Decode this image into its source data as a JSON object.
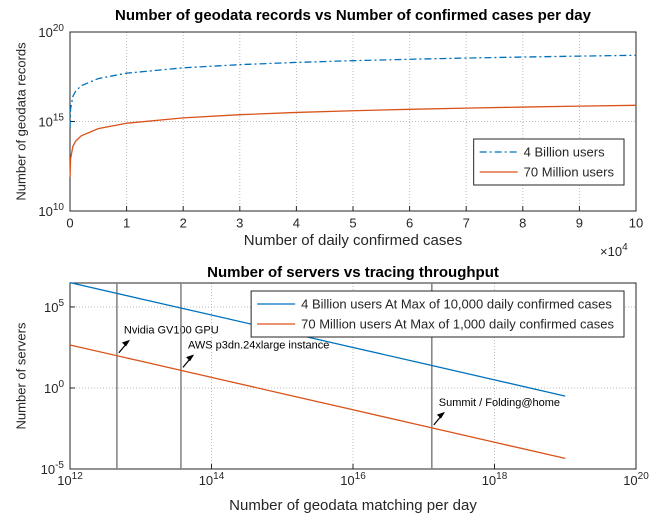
{
  "chart_data": [
    {
      "type": "line",
      "title": "Number of geodata records vs Number of confirmed cases per day",
      "xlabel": "Number of daily confirmed cases",
      "ylabel": "Number of geodata records",
      "x_multiplier": "×10^4",
      "x": [
        10,
        100,
        500,
        1000,
        2000,
        5000,
        10000,
        20000,
        30000,
        40000,
        50000,
        60000,
        70000,
        80000,
        90000,
        100000
      ],
      "series": [
        {
          "name": "4 Billion users",
          "color": "#0072bd",
          "linestyle": "dashdot",
          "values": [
            500000000000000.0,
            5000000000000000.0,
            2.5e+16,
            5e+16,
            1e+17,
            2.5e+17,
            5e+17,
            1e+18,
            1.5e+18,
            2e+18,
            2.5e+18,
            3e+18,
            3.5e+18,
            4e+18,
            4.5e+18,
            5e+18
          ]
        },
        {
          "name": "70 Million users",
          "color": "#d95319",
          "linestyle": "solid",
          "values": [
            800000000000.0,
            8000000000000.0,
            40000000000000.0,
            80000000000000.0,
            160000000000000.0,
            400000000000000.0,
            800000000000000.0,
            1600000000000000.0,
            2400000000000000.0,
            3200000000000000.0,
            4000000000000000.0,
            4800000000000000.0,
            5600000000000000.0,
            6400000000000000.0,
            7200000000000000.0,
            8000000000000000.0
          ]
        }
      ],
      "xlim": [
        0,
        100000
      ],
      "xticks": [
        {
          "value": 0,
          "label": "0"
        },
        {
          "value": 10000,
          "label": "1"
        },
        {
          "value": 20000,
          "label": "2"
        },
        {
          "value": 30000,
          "label": "3"
        },
        {
          "value": 40000,
          "label": "4"
        },
        {
          "value": 50000,
          "label": "5"
        },
        {
          "value": 60000,
          "label": "6"
        },
        {
          "value": 70000,
          "label": "7"
        },
        {
          "value": 80000,
          "label": "8"
        },
        {
          "value": 90000,
          "label": "9"
        },
        {
          "value": 100000,
          "label": "10"
        }
      ],
      "xscale": "linear",
      "ylim": [
        10000000000.0,
        1e+20
      ],
      "yticks": [
        {
          "value": 10000000000.0,
          "label": "10^10"
        },
        {
          "value": 1000000000000000.0,
          "label": "10^15"
        },
        {
          "value": 1e+20,
          "label": "10^20"
        }
      ],
      "yscale": "log",
      "grid": true,
      "legend": "southeast"
    },
    {
      "type": "line",
      "title": "Number of servers vs tracing throughput",
      "xlabel": "Number of geodata matching per day",
      "ylabel": "Number of servers",
      "x": [
        1000000000000.0,
        10000000000000.0,
        100000000000000.0,
        1000000000000000.0,
        1e+16,
        1e+17,
        1e+18,
        1e+19
      ],
      "series": [
        {
          "name": "4 Billion users At Max of 10,000 daily confirmed cases",
          "color": "#0072bd",
          "linestyle": "solid",
          "values": [
            3162278,
            316228,
            31623,
            3162,
            316.2,
            31.62,
            3.162,
            0.3162
          ]
        },
        {
          "name": "70 Million users At Max of 1,000 daily confirmed cases",
          "color": "#d95319",
          "linestyle": "solid",
          "values": [
            450,
            45,
            4.5,
            0.45,
            0.045,
            0.0045,
            0.00045,
            4.5e-05
          ]
        }
      ],
      "annotations": [
        {
          "text": "Nvidia GV100 GPU",
          "x": 4600000000000.0
        },
        {
          "text": "AWS p3dn.24xlarge instance",
          "x": 37000000000000.0
        },
        {
          "text": "Summit / Folding@home",
          "x": 1.3e+17
        }
      ],
      "xlim": [
        1000000000000.0,
        1e+20
      ],
      "xticks": [
        {
          "value": 1000000000000.0,
          "label": "10^12"
        },
        {
          "value": 100000000000000.0,
          "label": "10^14"
        },
        {
          "value": 1e+16,
          "label": "10^16"
        },
        {
          "value": 1e+18,
          "label": "10^18"
        },
        {
          "value": 1e+20,
          "label": "10^20"
        }
      ],
      "xscale": "log",
      "ylim": [
        1e-05,
        3000000.0
      ],
      "yticks": [
        {
          "value": 1e-05,
          "label": "10^-5"
        },
        {
          "value": 1,
          "label": "10^0"
        },
        {
          "value": 100000.0,
          "label": "10^5"
        }
      ],
      "yscale": "log",
      "grid": true,
      "legend": "northeast"
    }
  ]
}
